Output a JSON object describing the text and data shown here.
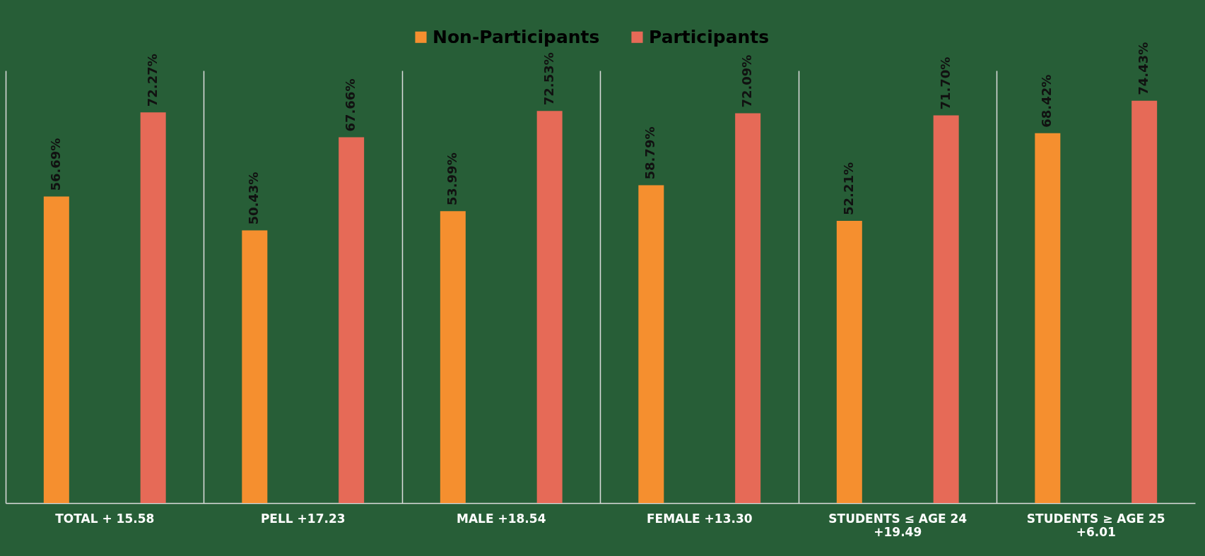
{
  "chart_data": {
    "type": "bar",
    "categories": [
      "TOTAL + 15.58",
      "PELL +17.23",
      "MALE +18.54",
      "FEMALE +13.30",
      "STUDENTS ≤ AGE 24 +19.49",
      "STUDENTS ≥ AGE 25 +6.01"
    ],
    "series": [
      {
        "name": "Non-Participants",
        "color": "#f58f2f",
        "values": [
          56.69,
          50.43,
          53.99,
          58.79,
          52.21,
          68.42
        ],
        "value_labels": [
          "56.69%",
          "50.43%",
          "53.99%",
          "58.79%",
          "52.21%",
          "68.42%"
        ]
      },
      {
        "name": "Participants",
        "color": "#e66a57",
        "values": [
          72.27,
          67.66,
          72.53,
          72.09,
          71.7,
          74.43
        ],
        "value_labels": [
          "72.27%",
          "67.66%",
          "72.53%",
          "72.09%",
          "71.70%",
          "74.43%"
        ]
      }
    ],
    "ylim": [
      0,
      80
    ],
    "grid": "x",
    "legend": "top"
  }
}
